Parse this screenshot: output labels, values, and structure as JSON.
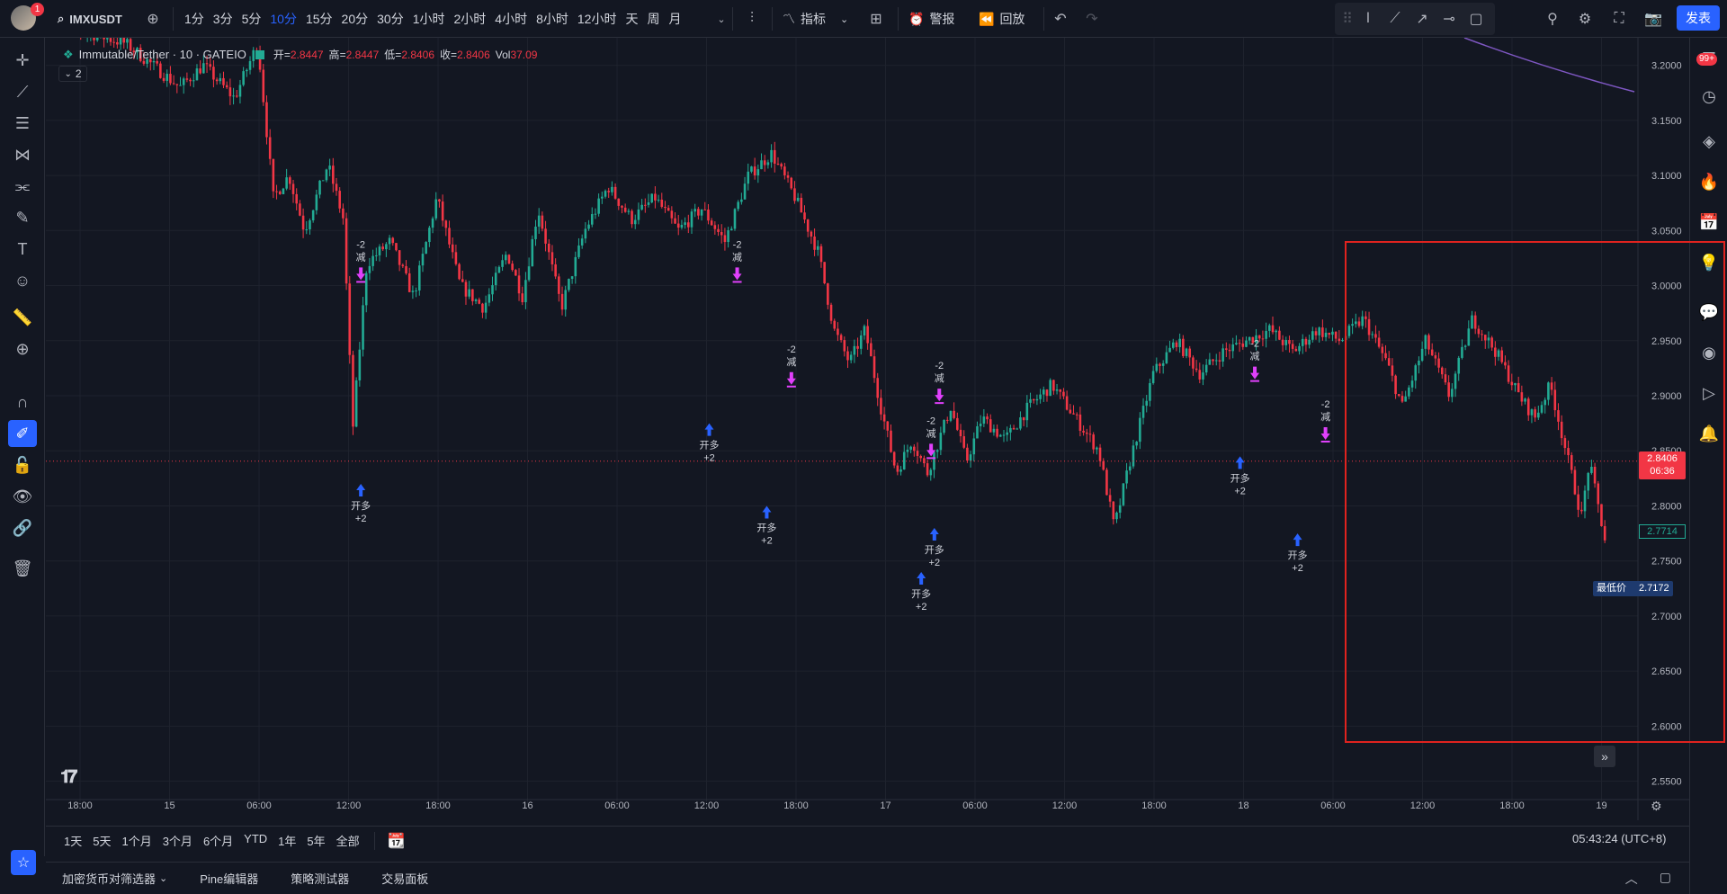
{
  "header": {
    "avatar_badge": "1",
    "symbol": "IMXUSDT",
    "intervals": [
      "1分",
      "3分",
      "5分",
      "10分",
      "15分",
      "20分",
      "30分",
      "1小时",
      "2小时",
      "4小时",
      "8小时",
      "12小时",
      "天",
      "周",
      "月"
    ],
    "active_interval": "10分",
    "indicators_label": "指标",
    "alert_label": "警报",
    "replay_label": "回放",
    "publish_label": "发表"
  },
  "legend": {
    "title": "Immutable/Tether · 10 · GATEIO",
    "open_label": "开",
    "open": "2.8447",
    "high_label": "高",
    "high": "2.8447",
    "low_label": "低",
    "low": "2.8406",
    "close_label": "收",
    "close": "2.8406",
    "vol_label": "Vol",
    "vol": "37.09",
    "indicator_count": "2"
  },
  "right_toolbar": {
    "badge": "99+"
  },
  "chart_data": {
    "type": "candlestick",
    "y_ticks": [
      "3.2000",
      "3.1500",
      "3.1000",
      "3.0500",
      "3.0000",
      "2.9500",
      "2.9000",
      "2.8500",
      "2.8000",
      "2.7500",
      "2.7000",
      "2.6500",
      "2.6000",
      "2.5500"
    ],
    "x_ticks": [
      "18:00",
      "15",
      "06:00",
      "12:00",
      "18:00",
      "16",
      "06:00",
      "12:00",
      "18:00",
      "17",
      "06:00",
      "12:00",
      "18:00",
      "18",
      "06:00",
      "12:00",
      "18:00",
      "19"
    ],
    "ylim": [
      2.535,
      3.225
    ],
    "current_price": "2.8406",
    "countdown": "06:36",
    "ma_price": "2.7714",
    "lowest_label": "最低价",
    "lowest_price": "2.7172",
    "signals": [
      {
        "type": "long",
        "label": "开多",
        "qty": "+2",
        "x": 0.184,
        "price": 2.82
      },
      {
        "type": "reduce",
        "label": "减",
        "qty": "-2",
        "x": 0.184,
        "price": 3.005
      },
      {
        "type": "reduce",
        "label": "减",
        "qty": "-2",
        "x": 0.413,
        "price": 3.005
      },
      {
        "type": "long",
        "label": "开多",
        "qty": "+2",
        "x": 0.396,
        "price": 2.875
      },
      {
        "type": "reduce",
        "label": "减",
        "qty": "-2",
        "x": 0.446,
        "price": 2.91
      },
      {
        "type": "long",
        "label": "开多",
        "qty": "+2",
        "x": 0.431,
        "price": 2.8
      },
      {
        "type": "reduce",
        "label": "减",
        "qty": "-2",
        "x": 0.536,
        "price": 2.895
      },
      {
        "type": "reduce",
        "label": "减",
        "qty": "-2",
        "x": 0.531,
        "price": 2.845
      },
      {
        "type": "long",
        "label": "开多",
        "qty": "+2",
        "x": 0.533,
        "price": 2.78
      },
      {
        "type": "long",
        "label": "开多",
        "qty": "+2",
        "x": 0.525,
        "price": 2.74
      },
      {
        "type": "reduce",
        "label": "减",
        "qty": "-2",
        "x": 0.728,
        "price": 2.915
      },
      {
        "type": "long",
        "label": "开多",
        "qty": "+2",
        "x": 0.719,
        "price": 2.845
      },
      {
        "type": "reduce",
        "label": "减",
        "qty": "-2",
        "x": 0.771,
        "price": 2.86
      },
      {
        "type": "long",
        "label": "开多",
        "qty": "+2",
        "x": 0.754,
        "price": 2.775
      }
    ]
  },
  "ranges": [
    "1天",
    "5天",
    "1个月",
    "3个月",
    "6个月",
    "YTD",
    "1年",
    "5年",
    "全部"
  ],
  "clock": "05:43:24 (UTC+8)",
  "bottom_tabs": [
    "加密货币对筛选器",
    "Pine编辑器",
    "策略测试器",
    "交易面板"
  ],
  "colors": {
    "up": "#22ab94",
    "down": "#f23645",
    "accent": "#2962ff",
    "signal_long": "#2962ff",
    "signal_reduce": "#e040fb"
  }
}
